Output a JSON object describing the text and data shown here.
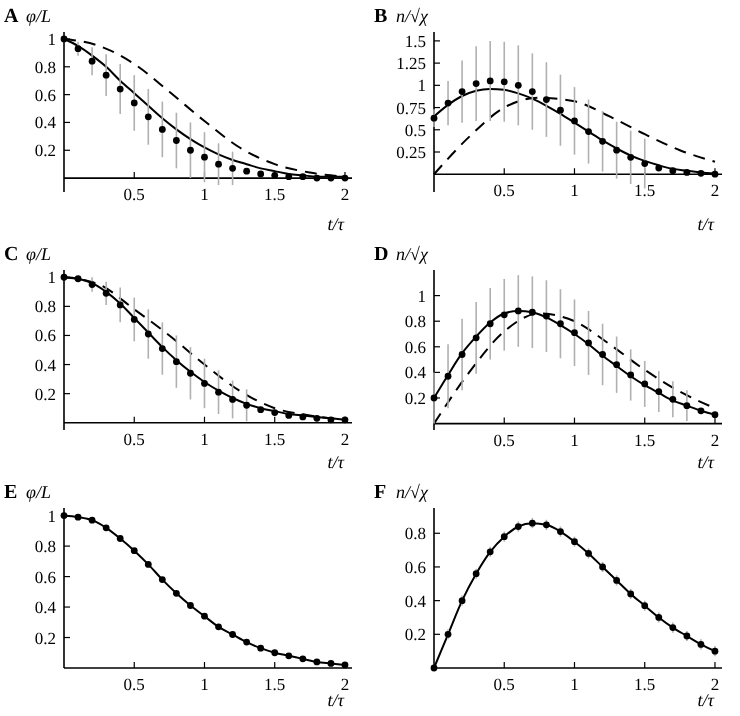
{
  "chart_data": [
    {
      "type": "line",
      "title": "A",
      "ylabel": "φ/L",
      "xlabel": "t/τ",
      "x": [
        0,
        0.1,
        0.2,
        0.3,
        0.4,
        0.5,
        0.6,
        0.7,
        0.8,
        0.9,
        1,
        1.1,
        1.2,
        1.3,
        1.4,
        1.5,
        1.6,
        1.7,
        1.8,
        1.9,
        2
      ],
      "xlim": [
        0,
        2.05
      ],
      "ylim": [
        -0.1,
        1.05
      ],
      "xticks": [
        0.5,
        1,
        1.5,
        2
      ],
      "yticks": [
        0.2,
        0.4,
        0.6,
        0.8,
        1
      ],
      "grid": false,
      "series": [
        {
          "line_style": "dashed",
          "color": "#000000",
          "x": [
            0,
            0.25,
            0.5,
            0.75,
            1,
            1.25,
            1.5,
            1.75,
            2
          ],
          "values": [
            1,
            0.95,
            0.82,
            0.62,
            0.41,
            0.22,
            0.1,
            0.04,
            0.01
          ]
        },
        {
          "line_style": "solid",
          "color": "#000000",
          "values": [
            1,
            0.95,
            0.88,
            0.8,
            0.7,
            0.61,
            0.52,
            0.43,
            0.35,
            0.28,
            0.22,
            0.17,
            0.13,
            0.1,
            0.07,
            0.05,
            0.03,
            0.02,
            0.01,
            0.01,
            0.01
          ]
        },
        {
          "type": "scatter",
          "marker": "circle",
          "color": "#000000",
          "values": [
            1,
            0.93,
            0.84,
            0.74,
            0.64,
            0.54,
            0.44,
            0.35,
            0.27,
            0.2,
            0.15,
            0.1,
            0.07,
            0.05,
            0.03,
            0.02,
            0.01,
            0.01,
            0,
            0,
            0
          ],
          "errors": [
            null,
            0.05,
            0.1,
            0.15,
            0.18,
            0.2,
            0.2,
            0.2,
            0.2,
            0.2,
            0.18,
            0.15,
            0.12,
            null,
            null,
            null,
            null,
            null,
            null,
            null,
            null
          ]
        }
      ]
    },
    {
      "type": "line",
      "title": "B",
      "ylabel": "n/√χ",
      "xlabel": "t/τ",
      "x": [
        0,
        0.1,
        0.2,
        0.3,
        0.4,
        0.5,
        0.6,
        0.7,
        0.8,
        0.9,
        1,
        1.1,
        1.2,
        1.3,
        1.4,
        1.5,
        1.6,
        1.7,
        1.8,
        1.9,
        2
      ],
      "xlim": [
        0,
        2.05
      ],
      "ylim": [
        -0.2,
        1.6
      ],
      "xticks": [
        0.5,
        1,
        1.5,
        2
      ],
      "yticks": [
        0.25,
        0.5,
        0.75,
        1,
        1.25,
        1.5
      ],
      "grid": false,
      "series": [
        {
          "line_style": "dashed",
          "color": "#000000",
          "x": [
            0,
            0.25,
            0.5,
            0.75,
            1,
            1.25,
            1.5,
            1.75,
            2
          ],
          "values": [
            0,
            0.42,
            0.75,
            0.86,
            0.82,
            0.65,
            0.45,
            0.27,
            0.14
          ]
        },
        {
          "line_style": "solid",
          "color": "#000000",
          "values": [
            0.65,
            0.78,
            0.88,
            0.94,
            0.96,
            0.95,
            0.91,
            0.85,
            0.77,
            0.68,
            0.58,
            0.48,
            0.38,
            0.29,
            0.21,
            0.15,
            0.1,
            0.06,
            0.04,
            0.02,
            0.01
          ]
        },
        {
          "type": "scatter",
          "marker": "circle",
          "color": "#000000",
          "values": [
            0.63,
            0.8,
            0.93,
            1.02,
            1.05,
            1.04,
            1,
            0.93,
            0.84,
            0.72,
            0.6,
            0.48,
            0.37,
            0.27,
            0.19,
            0.12,
            0.07,
            0.04,
            0.02,
            0.01,
            0
          ],
          "errors": [
            0.1,
            0.25,
            0.35,
            0.42,
            0.45,
            0.45,
            0.45,
            0.43,
            0.42,
            0.4,
            0.38,
            0.36,
            0.34,
            0.32,
            0.3,
            0.28,
            null,
            null,
            null,
            null,
            null
          ]
        }
      ]
    },
    {
      "type": "line",
      "title": "C",
      "ylabel": "φ/L",
      "xlabel": "t/τ",
      "x": [
        0,
        0.1,
        0.2,
        0.3,
        0.4,
        0.5,
        0.6,
        0.7,
        0.8,
        0.9,
        1,
        1.1,
        1.2,
        1.3,
        1.4,
        1.5,
        1.6,
        1.7,
        1.8,
        1.9,
        2
      ],
      "xlim": [
        0,
        2.05
      ],
      "ylim": [
        -0.05,
        1.05
      ],
      "xticks": [
        0.5,
        1,
        1.5,
        2
      ],
      "yticks": [
        0.2,
        0.4,
        0.6,
        0.8,
        1
      ],
      "grid": false,
      "series": [
        {
          "line_style": "dashed",
          "color": "#000000",
          "x": [
            0,
            0.25,
            0.5,
            0.75,
            1,
            1.25,
            1.5,
            1.75,
            2
          ],
          "values": [
            1,
            0.95,
            0.78,
            0.6,
            0.4,
            0.22,
            0.1,
            0.05,
            0.02
          ]
        },
        {
          "line_style": "solid",
          "color": "#000000",
          "values": [
            1,
            0.99,
            0.96,
            0.9,
            0.82,
            0.72,
            0.62,
            0.52,
            0.43,
            0.35,
            0.28,
            0.22,
            0.17,
            0.13,
            0.1,
            0.08,
            0.06,
            0.05,
            0.04,
            0.03,
            0.02
          ]
        },
        {
          "type": "scatter",
          "marker": "circle",
          "color": "#000000",
          "values": [
            1,
            0.99,
            0.95,
            0.89,
            0.81,
            0.71,
            0.61,
            0.51,
            0.42,
            0.34,
            0.27,
            0.21,
            0.16,
            0.12,
            0.09,
            0.07,
            0.05,
            0.04,
            0.03,
            0.02,
            0.02
          ],
          "errors": [
            null,
            null,
            0.05,
            0.08,
            0.12,
            0.15,
            0.17,
            0.18,
            0.18,
            0.18,
            0.17,
            0.15,
            0.13,
            0.11,
            null,
            null,
            null,
            null,
            null,
            null,
            null
          ]
        }
      ]
    },
    {
      "type": "line",
      "title": "D",
      "ylabel": "n/√χ",
      "xlabel": "t/τ",
      "x": [
        0,
        0.1,
        0.2,
        0.3,
        0.4,
        0.5,
        0.6,
        0.7,
        0.8,
        0.9,
        1,
        1.1,
        1.2,
        1.3,
        1.4,
        1.5,
        1.6,
        1.7,
        1.8,
        1.9,
        2
      ],
      "xlim": [
        0,
        2.05
      ],
      "ylim": [
        -0.05,
        1.2
      ],
      "xticks": [
        0.5,
        1,
        1.5,
        2
      ],
      "yticks": [
        0.2,
        0.4,
        0.6,
        0.8,
        1
      ],
      "grid": false,
      "series": [
        {
          "line_style": "dashed",
          "color": "#000000",
          "x": [
            0,
            0.25,
            0.5,
            0.75,
            1,
            1.25,
            1.5,
            1.75,
            2
          ],
          "values": [
            0,
            0.4,
            0.72,
            0.86,
            0.8,
            0.62,
            0.42,
            0.25,
            0.12
          ]
        },
        {
          "line_style": "solid",
          "color": "#000000",
          "values": [
            0.2,
            0.38,
            0.55,
            0.68,
            0.79,
            0.86,
            0.88,
            0.87,
            0.83,
            0.77,
            0.7,
            0.62,
            0.53,
            0.45,
            0.37,
            0.3,
            0.24,
            0.18,
            0.14,
            0.1,
            0.07
          ]
        },
        {
          "type": "scatter",
          "marker": "circle",
          "color": "#000000",
          "values": [
            0.2,
            0.37,
            0.54,
            0.67,
            0.78,
            0.85,
            0.88,
            0.87,
            0.84,
            0.78,
            0.71,
            0.63,
            0.54,
            0.46,
            0.38,
            0.31,
            0.25,
            0.19,
            0.14,
            0.1,
            0.07
          ],
          "errors": [
            0.2,
            0.25,
            0.28,
            0.28,
            0.28,
            0.28,
            0.28,
            0.28,
            0.28,
            0.27,
            0.26,
            0.25,
            0.24,
            0.22,
            0.2,
            0.18,
            0.16,
            0.14,
            0.12,
            null,
            null
          ]
        }
      ]
    },
    {
      "type": "line",
      "title": "E",
      "ylabel": "φ/L",
      "xlabel": "t/τ",
      "x": [
        0,
        0.1,
        0.2,
        0.3,
        0.4,
        0.5,
        0.6,
        0.7,
        0.8,
        0.9,
        1,
        1.1,
        1.2,
        1.3,
        1.4,
        1.5,
        1.6,
        1.7,
        1.8,
        1.9,
        2
      ],
      "xlim": [
        0,
        2.05
      ],
      "ylim": [
        0,
        1.05
      ],
      "xticks": [
        0.5,
        1,
        1.5,
        2
      ],
      "yticks": [
        0.2,
        0.4,
        0.6,
        0.8,
        1
      ],
      "grid": false,
      "series": [
        {
          "line_style": "solid",
          "color": "#000000",
          "values": [
            1,
            0.99,
            0.97,
            0.92,
            0.85,
            0.77,
            0.68,
            0.58,
            0.49,
            0.41,
            0.34,
            0.27,
            0.22,
            0.17,
            0.13,
            0.1,
            0.08,
            0.06,
            0.04,
            0.03,
            0.02
          ]
        },
        {
          "type": "scatter",
          "marker": "circle",
          "color": "#000000",
          "values": [
            1,
            0.99,
            0.97,
            0.92,
            0.85,
            0.77,
            0.68,
            0.58,
            0.49,
            0.41,
            0.34,
            0.27,
            0.22,
            0.17,
            0.13,
            0.1,
            0.08,
            0.06,
            0.04,
            0.03,
            0.02
          ]
        }
      ]
    },
    {
      "type": "line",
      "title": "F",
      "ylabel": "n/√χ",
      "xlabel": "t/τ",
      "x": [
        0,
        0.1,
        0.2,
        0.3,
        0.4,
        0.5,
        0.6,
        0.7,
        0.8,
        0.9,
        1,
        1.1,
        1.2,
        1.3,
        1.4,
        1.5,
        1.6,
        1.7,
        1.8,
        1.9,
        2
      ],
      "xlim": [
        0,
        2.05
      ],
      "ylim": [
        0,
        0.95
      ],
      "xticks": [
        0.5,
        1,
        1.5,
        2
      ],
      "yticks": [
        0.2,
        0.4,
        0.6,
        0.8
      ],
      "grid": false,
      "series": [
        {
          "line_style": "solid",
          "color": "#000000",
          "values": [
            0,
            0.2,
            0.4,
            0.56,
            0.69,
            0.78,
            0.84,
            0.86,
            0.85,
            0.81,
            0.75,
            0.68,
            0.6,
            0.52,
            0.44,
            0.37,
            0.3,
            0.24,
            0.19,
            0.14,
            0.1
          ]
        },
        {
          "type": "scatter",
          "marker": "circle",
          "color": "#000000",
          "values": [
            0,
            0.2,
            0.4,
            0.56,
            0.69,
            0.78,
            0.84,
            0.86,
            0.85,
            0.81,
            0.75,
            0.68,
            0.6,
            0.52,
            0.44,
            0.37,
            0.3,
            0.24,
            0.19,
            0.14,
            0.1
          ],
          "errors": [
            0,
            0.03,
            0.03,
            0.03,
            0.03,
            0.03,
            0.03,
            0.03,
            0.03,
            0.03,
            0.03,
            0.03,
            0.03,
            0.03,
            0.03,
            0.03,
            0.03,
            0.03,
            0.03,
            0.03,
            0.03
          ]
        }
      ]
    }
  ]
}
